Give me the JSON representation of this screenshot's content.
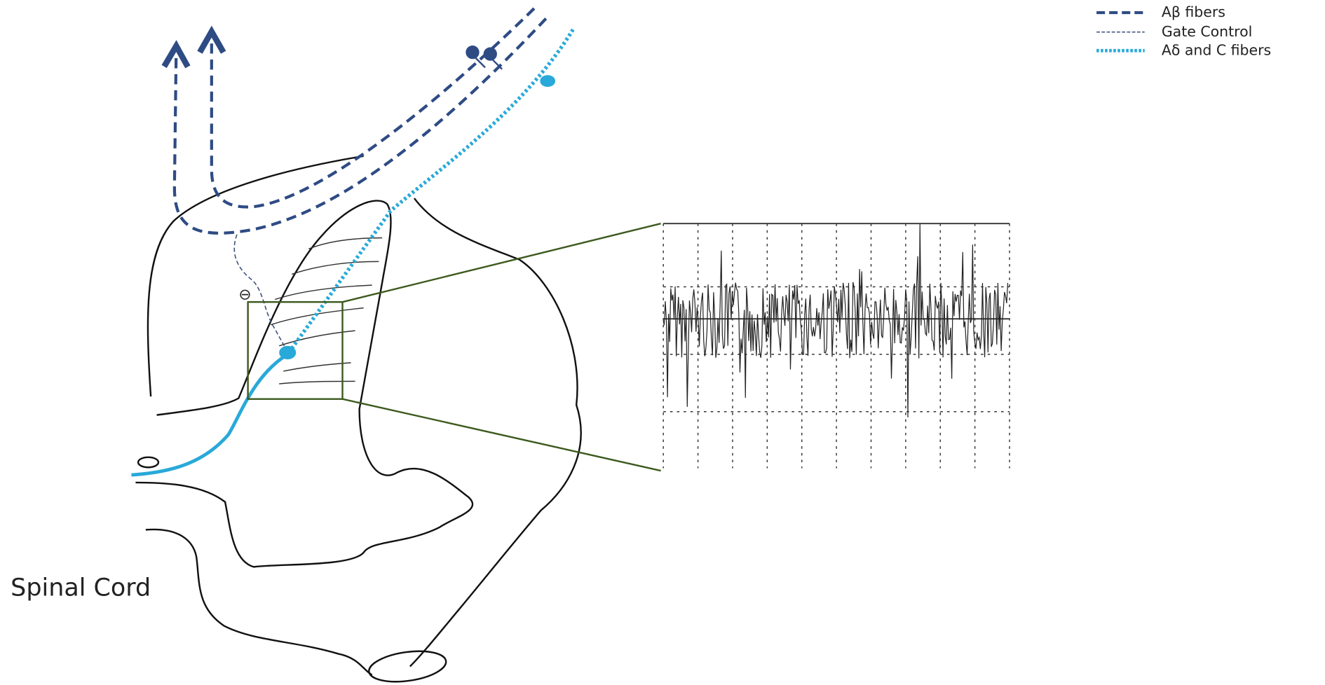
{
  "legend": {
    "items": [
      {
        "label": "Aβ fibers"
      },
      {
        "label": "Gate Control"
      },
      {
        "label": "Aδ and C fibers"
      }
    ]
  },
  "labels": {
    "region": "Spinal Cord",
    "inhibition": "⊖"
  }
}
